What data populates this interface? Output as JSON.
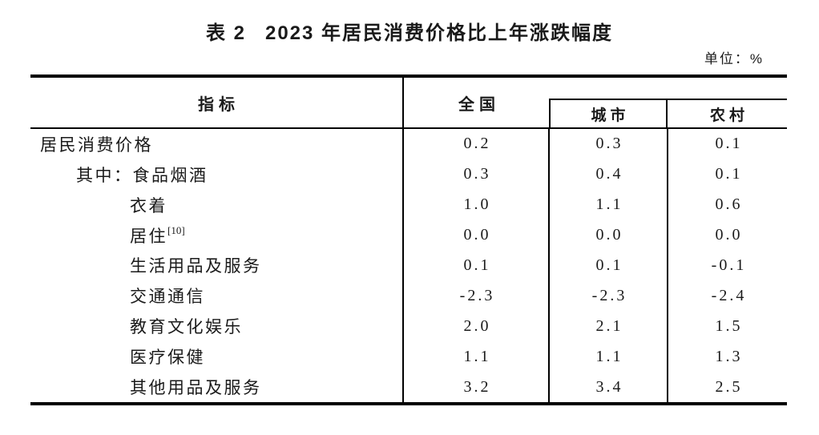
{
  "page": {
    "table_label": "表 2",
    "title": "2023 年居民消费价格比上年涨跌幅度",
    "unit_label": "单位：%"
  },
  "table": {
    "columns": [
      "指标",
      "全国",
      "城市",
      "农村"
    ],
    "rows": [
      {
        "label": "居民消费价格",
        "indent": 0,
        "national": "0.2",
        "urban": "0.3",
        "rural": "0.1"
      },
      {
        "label": "其中：食品烟酒",
        "indent": 1,
        "national": "0.3",
        "urban": "0.4",
        "rural": "0.1"
      },
      {
        "label": "衣着",
        "indent": 2,
        "national": "1.0",
        "urban": "1.1",
        "rural": "0.6"
      },
      {
        "label": "居住",
        "sup": "[10]",
        "indent": 2,
        "national": "0.0",
        "urban": "0.0",
        "rural": "0.0"
      },
      {
        "label": "生活用品及服务",
        "indent": 2,
        "national": "0.1",
        "urban": "0.1",
        "rural": "-0.1"
      },
      {
        "label": "交通通信",
        "indent": 2,
        "national": "-2.3",
        "urban": "-2.3",
        "rural": "-2.4"
      },
      {
        "label": "教育文化娱乐",
        "indent": 2,
        "national": "2.0",
        "urban": "2.1",
        "rural": "1.5"
      },
      {
        "label": "医疗保健",
        "indent": 2,
        "national": "1.1",
        "urban": "1.1",
        "rural": "1.3"
      },
      {
        "label": "其他用品及服务",
        "indent": 2,
        "national": "3.2",
        "urban": "3.4",
        "rural": "2.5"
      }
    ]
  }
}
